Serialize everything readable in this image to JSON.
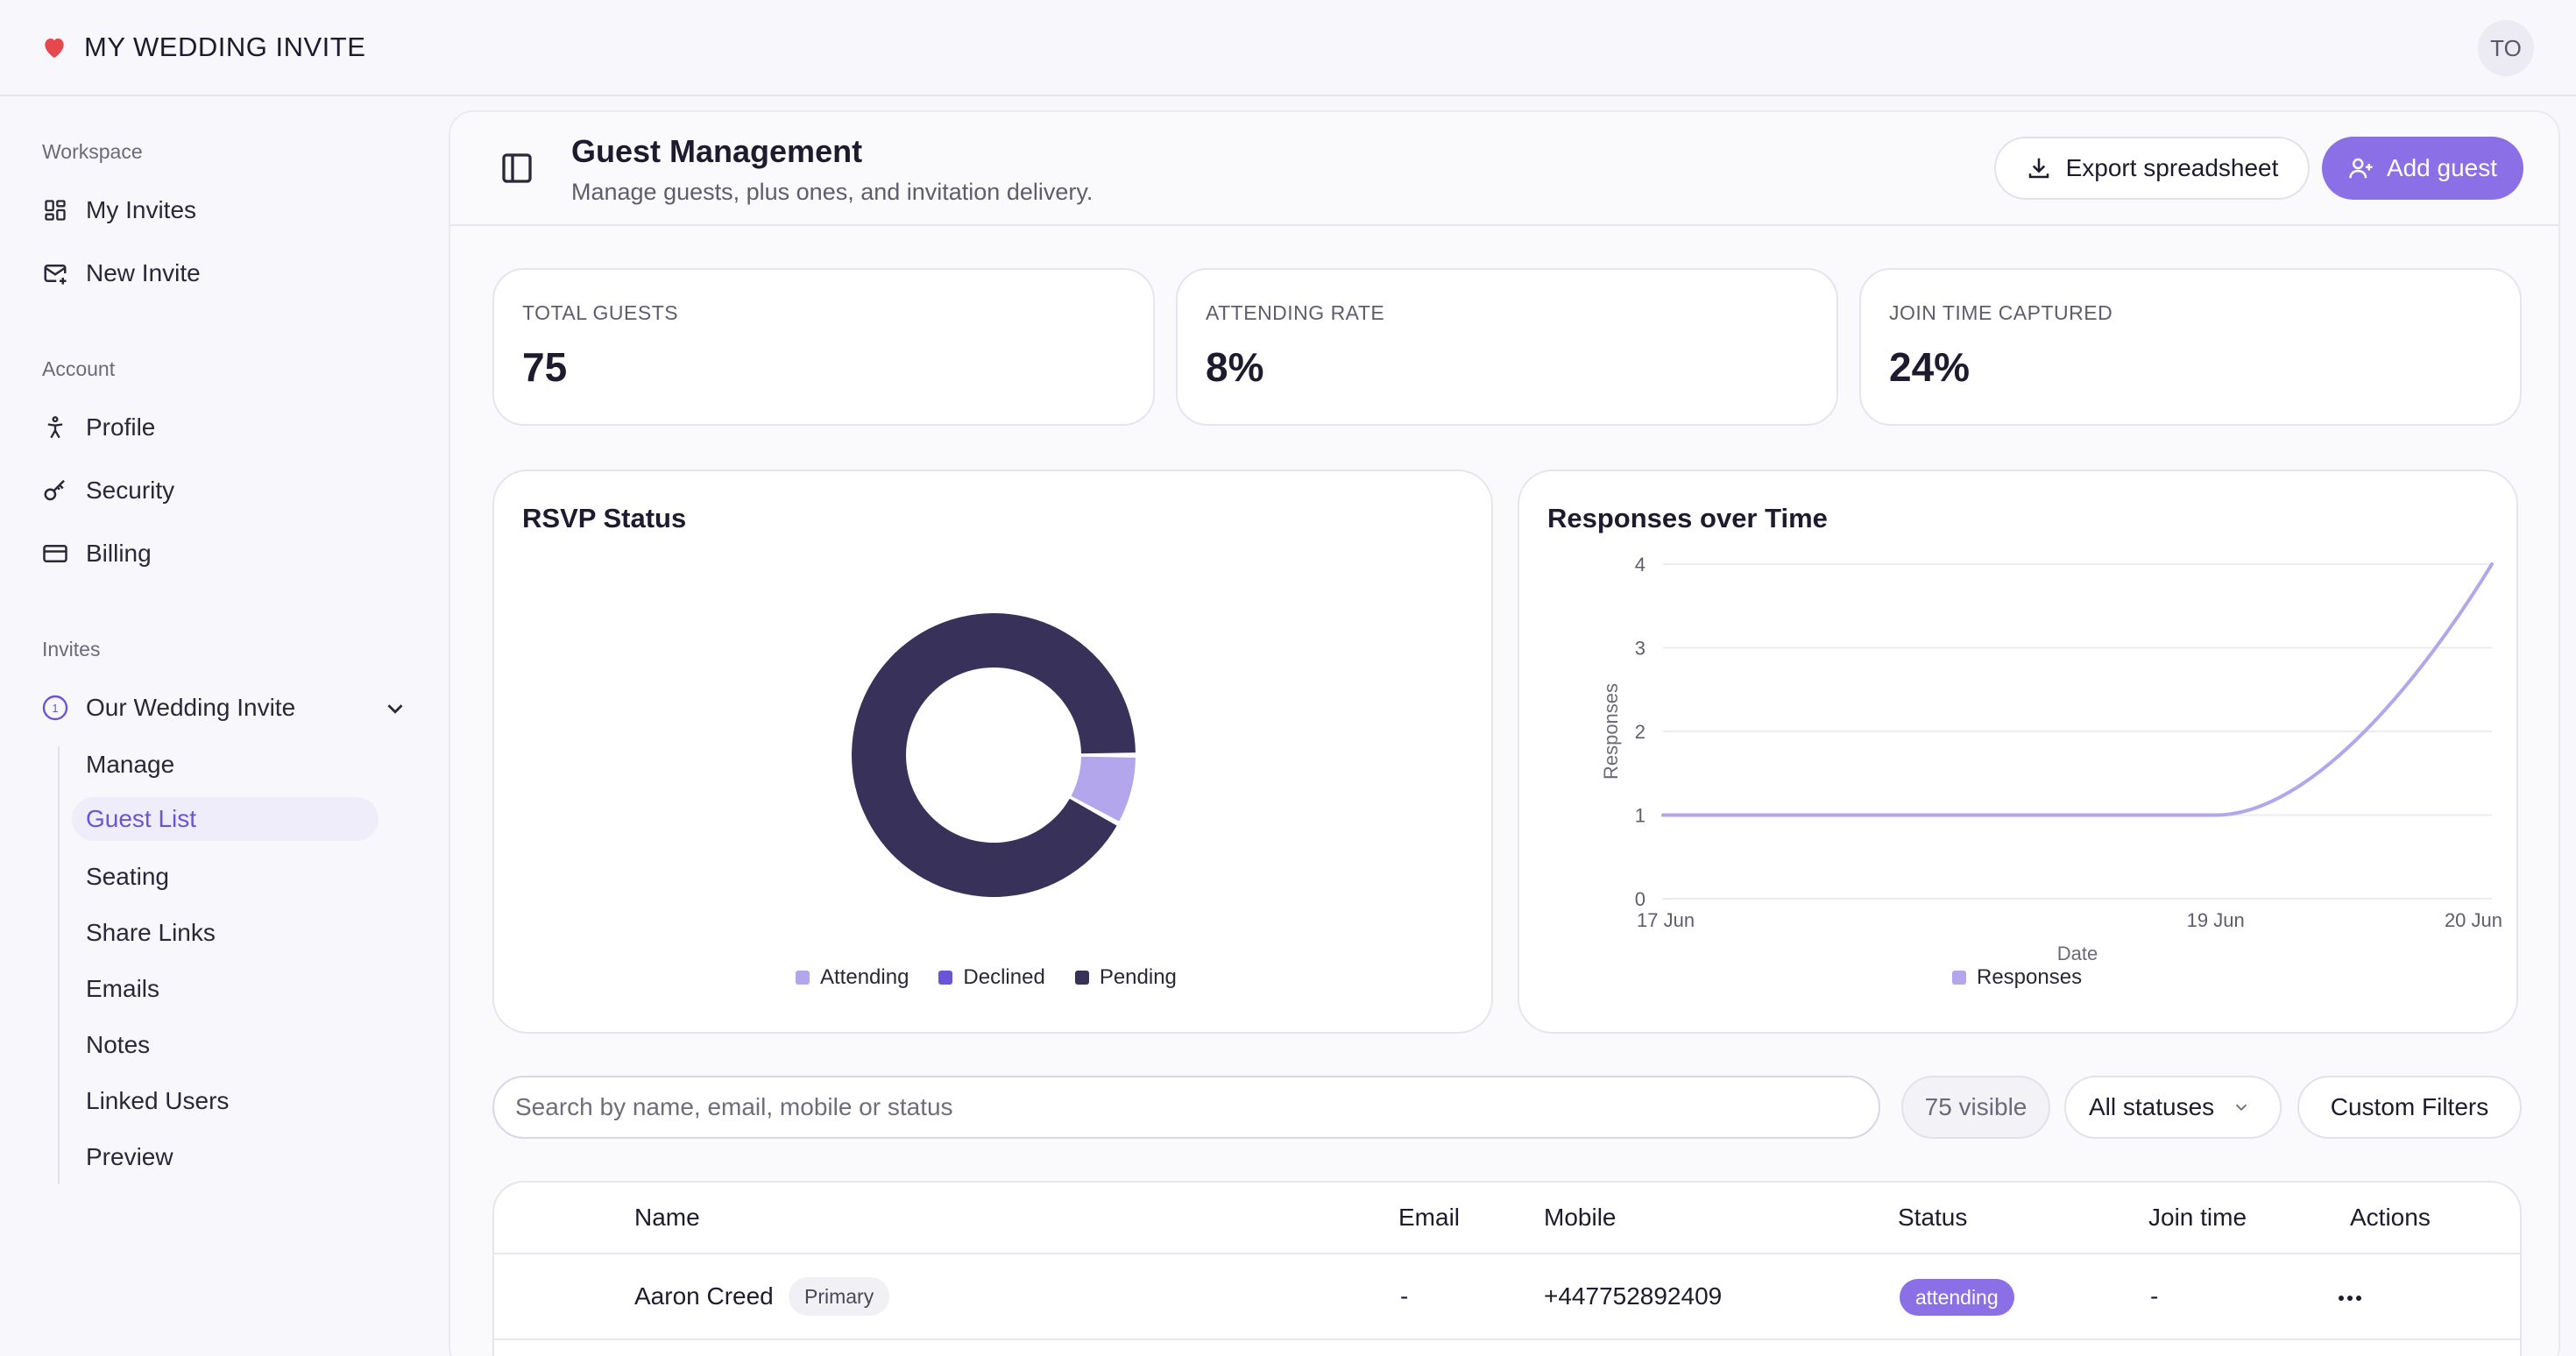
{
  "app": {
    "title": "MY WEDDING INVITE",
    "avatar_initials": "TO",
    "brand_color": "#e5484d"
  },
  "sidebar": {
    "workspace_label": "Workspace",
    "workspace_items": [
      {
        "label": "My Invites",
        "icon": "grid-icon"
      },
      {
        "label": "New Invite",
        "icon": "mail-plus-icon"
      }
    ],
    "account_label": "Account",
    "account_items": [
      {
        "label": "Profile",
        "icon": "person-icon"
      },
      {
        "label": "Security",
        "icon": "key-icon"
      },
      {
        "label": "Billing",
        "icon": "credit-card-icon"
      }
    ],
    "invites_label": "Invites",
    "invite_name": "Our Wedding Invite",
    "invite_badge": "1",
    "sub_items": [
      "Manage",
      "Guest List",
      "Seating",
      "Share Links",
      "Emails",
      "Notes",
      "Linked Users",
      "Preview"
    ],
    "active_sub_item": "Guest List"
  },
  "header": {
    "title": "Guest Management",
    "subtitle": "Manage guests, plus ones, and invitation delivery.",
    "export_label": "Export spreadsheet",
    "add_label": "Add guest",
    "accent": "#8b6fe6"
  },
  "stats": [
    {
      "label": "TOTAL GUESTS",
      "value": "75"
    },
    {
      "label": "ATTENDING RATE",
      "value": "8%"
    },
    {
      "label": "JOIN TIME CAPTURED",
      "value": "24%"
    }
  ],
  "chart_data": [
    {
      "type": "pie",
      "title": "RSVP Status",
      "donut": true,
      "categories": [
        "Attending",
        "Declined",
        "Pending"
      ],
      "values": [
        6,
        0,
        69
      ],
      "colors": [
        "#b3a6ec",
        "#6a55d8",
        "#38325a"
      ],
      "legend": "bottom"
    },
    {
      "type": "line",
      "title": "Responses over Time",
      "xlabel": "Date",
      "ylabel": "Responses",
      "x": [
        "17 Jun",
        "19 Jun",
        "20 Jun"
      ],
      "x_ticks": [
        "17 Jun",
        "19 Jun",
        "20 Jun"
      ],
      "y_ticks": [
        0,
        1,
        2,
        3,
        4
      ],
      "ylim": [
        0,
        4
      ],
      "series": [
        {
          "name": "Responses",
          "values": [
            1,
            1,
            4
          ],
          "color": "#b3a6ec"
        }
      ],
      "curve": "smooth",
      "grid": true,
      "legend": "bottom"
    }
  ],
  "toolbar": {
    "search_placeholder": "Search by name, email, mobile or status",
    "visible_count": "75 visible",
    "status_filter": "All statuses",
    "custom_filters_label": "Custom Filters"
  },
  "table": {
    "columns": [
      "Name",
      "Email",
      "Mobile",
      "Status",
      "Join time",
      "Actions"
    ],
    "rows": [
      {
        "name": "Aaron Creed",
        "tag": "Primary",
        "email": "-",
        "mobile": "+447752892409",
        "status": "attending",
        "join_time": "-"
      }
    ]
  }
}
